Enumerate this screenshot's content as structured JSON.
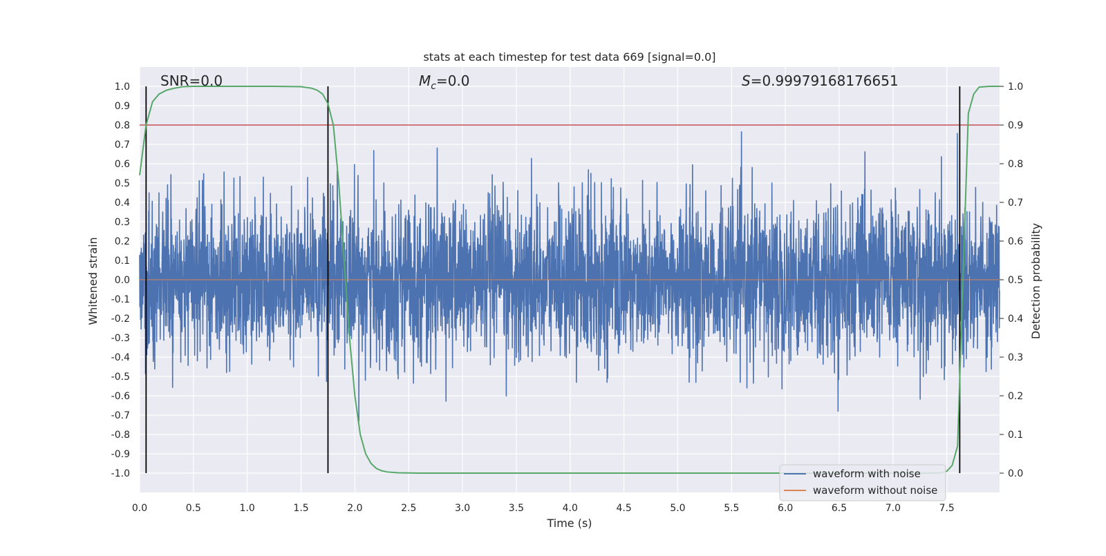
{
  "chart_data": {
    "type": "line",
    "title": "stats at each timestep for test data 669 [signal=0.0]",
    "xlabel": "Time (s)",
    "ylabel": "Whitened strain",
    "ylabel_right": "Detection probability",
    "xlim": [
      0,
      7.99
    ],
    "ylim": [
      -1.1,
      1.1
    ],
    "ylim_right": [
      -0.05,
      1.05
    ],
    "x_ticks": [
      "0.0",
      "0.5",
      "1.0",
      "1.5",
      "2.0",
      "2.5",
      "3.0",
      "3.5",
      "4.0",
      "4.5",
      "5.0",
      "5.5",
      "6.0",
      "6.5",
      "7.0",
      "7.5"
    ],
    "x_tick_values": [
      0,
      0.5,
      1,
      1.5,
      2,
      2.5,
      3,
      3.5,
      4,
      4.5,
      5,
      5.5,
      6,
      6.5,
      7,
      7.5
    ],
    "y_ticks": [
      "1.0",
      "0.9",
      "0.8",
      "0.7",
      "0.6",
      "0.5",
      "0.4",
      "0.3",
      "0.2",
      "0.1",
      "0.0",
      "-0.1",
      "-0.2",
      "-0.3",
      "-0.4",
      "-0.5",
      "-0.6",
      "-0.7",
      "-0.8",
      "-0.9",
      "-1.0"
    ],
    "y_tick_values": [
      1,
      0.9,
      0.8,
      0.7,
      0.6,
      0.5,
      0.4,
      0.3,
      0.2,
      0.1,
      0,
      -0.1,
      -0.2,
      -0.3,
      -0.4,
      -0.5,
      -0.6,
      -0.7,
      -0.8,
      -0.9,
      -1.0
    ],
    "y_right_ticks": [
      "1.0",
      "0.9",
      "0.8",
      "0.7",
      "0.6",
      "0.5",
      "0.4",
      "0.3",
      "0.2",
      "0.1",
      "0.0"
    ],
    "y_right_tick_values": [
      1,
      0.9,
      0.8,
      0.7,
      0.6,
      0.5,
      0.4,
      0.3,
      0.2,
      0.1,
      0
    ],
    "annotations": {
      "snr": "SNR=0.0",
      "mc_symbol": "M",
      "mc_sub": "c",
      "mc_value": "=0.0",
      "s_symbol": "S",
      "s_value": "=0.99979168176651"
    },
    "threshold": {
      "value": 0.8,
      "color": "#c44e52"
    },
    "vertical_lines": [
      0.06,
      1.75,
      7.62
    ],
    "series": [
      {
        "name": "waveform with noise",
        "color": "#4c72b0",
        "kind": "noise",
        "samples": 4096,
        "sigma": 0.2
      },
      {
        "name": "waveform without noise",
        "color": "#dd8452",
        "kind": "flat",
        "values": []
      },
      {
        "name": "detection probability",
        "color": "#55a868",
        "axis": "right",
        "x": [
          0.0,
          0.06,
          0.12,
          0.18,
          0.25,
          0.32,
          0.4,
          0.5,
          0.75,
          1.0,
          1.25,
          1.5,
          1.6,
          1.65,
          1.7,
          1.75,
          1.8,
          1.85,
          1.9,
          1.95,
          2.0,
          2.05,
          2.1,
          2.15,
          2.2,
          2.25,
          2.3,
          2.4,
          2.6,
          3.0,
          4.0,
          5.0,
          6.0,
          7.0,
          7.3,
          7.45,
          7.5,
          7.55,
          7.6,
          7.65,
          7.7,
          7.75,
          7.8,
          7.9,
          7.99
        ],
        "values": [
          0.77,
          0.9,
          0.96,
          0.98,
          0.99,
          0.995,
          0.999,
          1.0,
          1.0,
          1.0,
          1.0,
          0.999,
          0.995,
          0.99,
          0.98,
          0.955,
          0.9,
          0.75,
          0.55,
          0.35,
          0.2,
          0.1,
          0.05,
          0.025,
          0.012,
          0.006,
          0.003,
          0.001,
          0.0,
          0.0,
          0.0,
          0.0,
          0.0,
          0.0,
          0.0,
          0.001,
          0.005,
          0.02,
          0.07,
          0.5,
          0.93,
          0.98,
          0.998,
          1.0,
          1.0
        ]
      }
    ],
    "legend_position": "lower-right",
    "legend": [
      "waveform with noise",
      "waveform without noise"
    ]
  }
}
